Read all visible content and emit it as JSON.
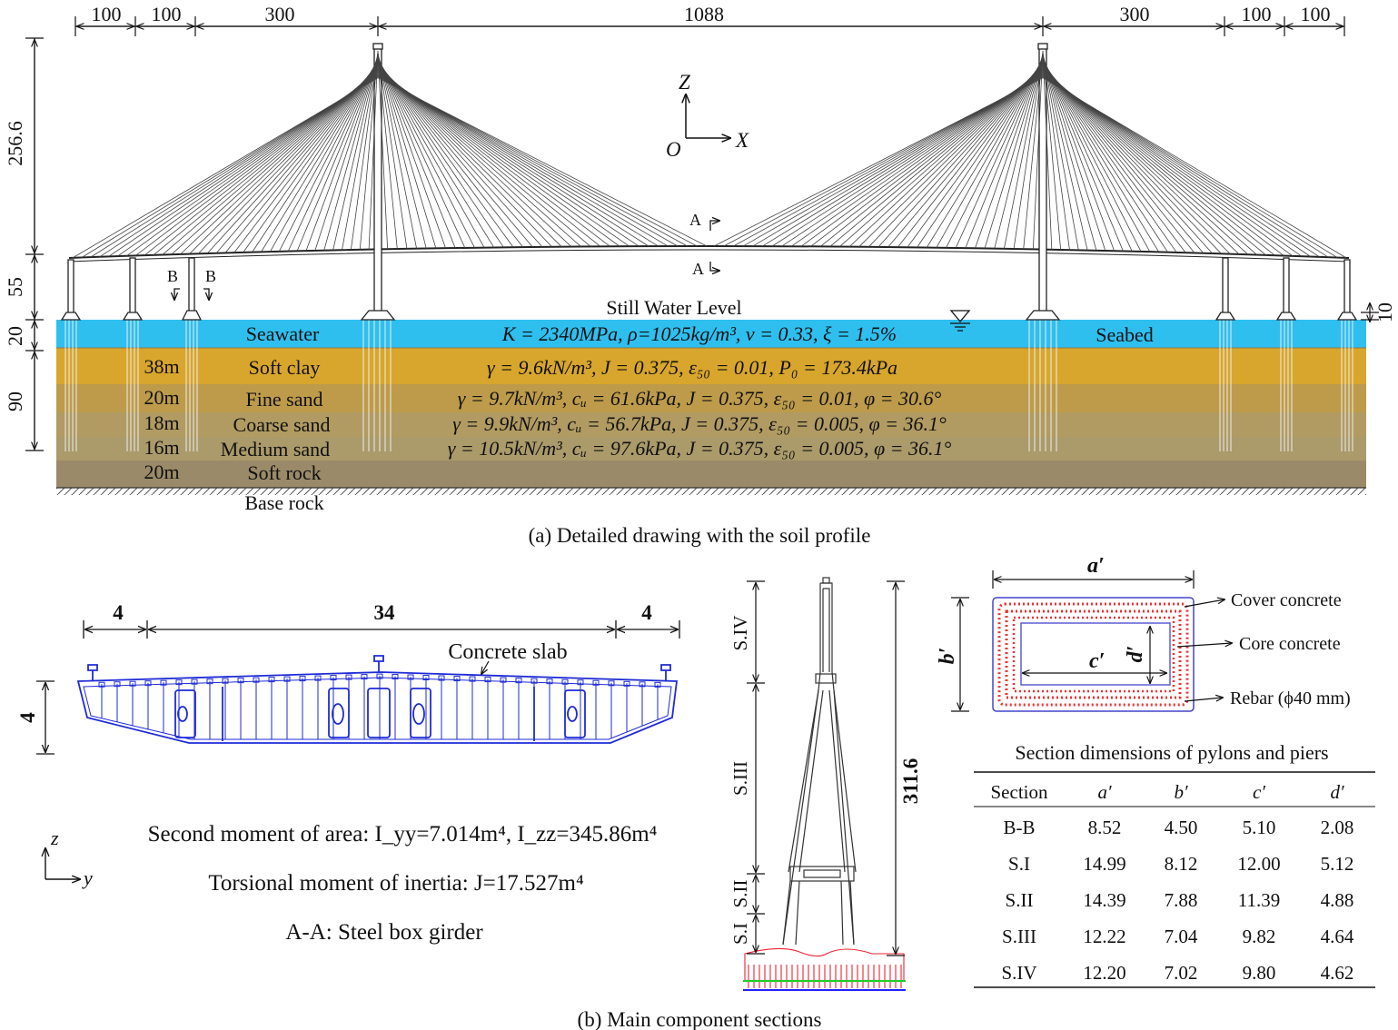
{
  "top": {
    "span_dims": [
      "100",
      "100",
      "300",
      "1088",
      "300",
      "100",
      "100"
    ],
    "height_dims": [
      "256.6",
      "55",
      "20",
      "90"
    ],
    "right_dim": "10",
    "axes": {
      "z": "Z",
      "o": "O",
      "x": "X"
    },
    "section_marks": {
      "a_top": "A",
      "a_bot": "A",
      "b1": "B",
      "b2": "B"
    },
    "still_water_label": "Still Water Level",
    "layers": [
      {
        "name": "Seawater",
        "thickness": "",
        "props": "K = 2340MPa, ρ=1025kg/m³, ν = 0.33, ξ = 1.5%",
        "color": "#2ebfef"
      },
      {
        "name": "Soft clay",
        "thickness": "38m",
        "props": "γ = 9.6kN/m³, J = 0.375, ε₅₀ = 0.01, P₀ = 173.4kPa",
        "color": "#d8a62c"
      },
      {
        "name": "Fine sand",
        "thickness": "20m",
        "props": "γ = 9.7kN/m³, cᵤ = 61.6kPa, J = 0.375, ε₅₀ = 0.01, φ = 30.6°",
        "color": "#bd9b4a"
      },
      {
        "name": "Coarse sand",
        "thickness": "18m",
        "props": "γ = 9.9kN/m³, cᵤ = 56.7kPa, J = 0.375, ε₅₀ = 0.005, φ = 36.1°",
        "color": "#b19b62"
      },
      {
        "name": "Medium sand",
        "thickness": "16m",
        "props": "γ = 10.5kN/m³, cᵤ = 97.6kPa, J = 0.375, ε₅₀ = 0.005, φ = 36.1°",
        "color": "#ab9a6a"
      },
      {
        "name": "Soft rock",
        "thickness": "20m",
        "props": "",
        "color": "#9b8a69"
      }
    ],
    "seabed_label": "Seabed",
    "base_rock_label": "Base rock",
    "caption": "(a) Detailed drawing with the soil profile"
  },
  "girder": {
    "dims": [
      "4",
      "34",
      "4"
    ],
    "height_dim": "4",
    "slab_label": "Concrete slab",
    "axes": {
      "z": "z",
      "y": "y"
    },
    "line1": "Second moment of area: I_yy=7.014m⁴, I_zz=345.86m⁴",
    "line2": "Torsional moment of inertia: J=17.527m⁴",
    "line3": "A-A: Steel box girder"
  },
  "pylon": {
    "height_dim": "311.6",
    "sections": [
      "S.IV",
      "S.III",
      "S.II",
      "S.I"
    ]
  },
  "cross_section": {
    "dims": {
      "a": "a′",
      "b": "b′",
      "c": "c′",
      "d": "d′"
    },
    "labels": [
      "Cover concrete",
      "Core concrete",
      "Rebar (ϕ40 mm)"
    ]
  },
  "table": {
    "title": "Section dimensions of pylons and piers",
    "headers": [
      "Section",
      "a′",
      "b′",
      "c′",
      "d′"
    ],
    "rows": [
      [
        "B-B",
        "8.52",
        "4.50",
        "5.10",
        "2.08"
      ],
      [
        "S.I",
        "14.99",
        "8.12",
        "12.00",
        "5.12"
      ],
      [
        "S.II",
        "14.39",
        "7.88",
        "11.39",
        "4.88"
      ],
      [
        "S.III",
        "12.22",
        "7.04",
        "9.82",
        "4.64"
      ],
      [
        "S.IV",
        "12.20",
        "7.02",
        "9.80",
        "4.62"
      ]
    ]
  },
  "caption_b": "(b) Main component sections"
}
